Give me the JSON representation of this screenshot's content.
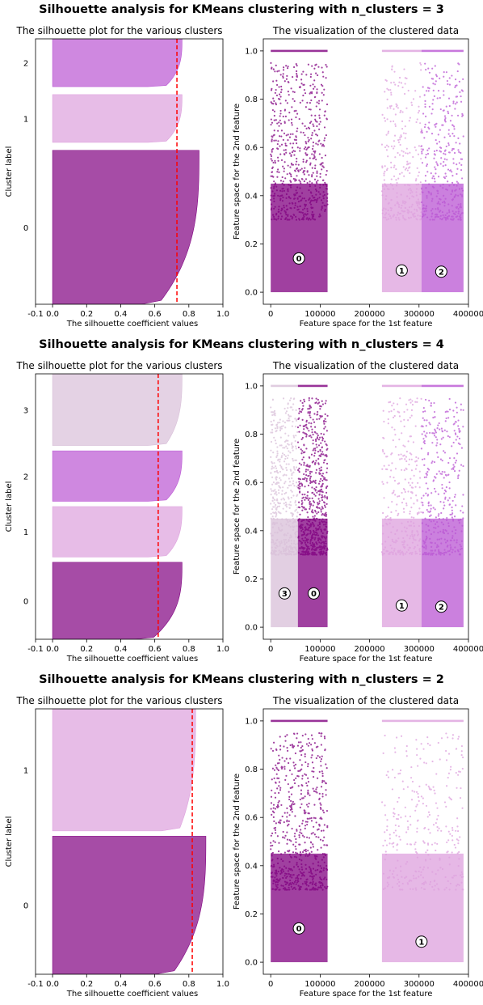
{
  "colors": {
    "cluster0": "#800080",
    "cluster1": "#dda0dd",
    "cluster2": "#ba55d3",
    "cluster3": "#d8bfd8",
    "average_line": "#ff0000"
  },
  "chart_data": [
    {
      "suptitle": "Silhouette analysis for KMeans clustering with n_clusters = 3",
      "silhouette": {
        "type": "area",
        "title": "The silhouette plot for the various clusters",
        "xlabel": "The silhouette coefficient values",
        "ylabel": "Cluster label",
        "xlim": [
          -0.1,
          1.0
        ],
        "xticks": [
          "-0.1",
          "0.0",
          "0.2",
          "0.4",
          "0.6",
          "0.8",
          "1.0"
        ],
        "ylim": [
          0,
          100
        ],
        "average_score": 0.73,
        "clusters": [
          {
            "label": "0",
            "color_key": "cluster0",
            "y_start": 0,
            "y_end": 58,
            "max": 0.86,
            "min": 0.62
          },
          {
            "label": "1",
            "color_key": "cluster1",
            "y_start": 61,
            "y_end": 79,
            "max": 0.76,
            "min": 0.66
          },
          {
            "label": "2",
            "color_key": "cluster2",
            "y_start": 82,
            "y_end": 100,
            "max": 0.76,
            "min": 0.66
          }
        ]
      },
      "scatter": {
        "type": "scatter",
        "title": "The visualization of the clustered data",
        "xlabel": "Feature space for the 1st feature",
        "ylabel": "Feature space for the 2nd feature",
        "xlim": [
          -15000,
          400000
        ],
        "ylim": [
          -0.05,
          1.05
        ],
        "xticks": [
          0,
          100000,
          200000,
          300000,
          400000
        ],
        "yticks": [
          0.0,
          0.2,
          0.4,
          0.6,
          0.8,
          1.0
        ],
        "clusters": [
          {
            "label": "0",
            "color_key": "cluster0",
            "x_range": [
              0,
              115000
            ],
            "density": 1.0,
            "center": [
              57000,
              0.14
            ]
          },
          {
            "label": "1",
            "color_key": "cluster1",
            "x_range": [
              225000,
              305000
            ],
            "density": 0.45,
            "center": [
              265000,
              0.09
            ]
          },
          {
            "label": "2",
            "color_key": "cluster2",
            "x_range": [
              305000,
              390000
            ],
            "density": 0.55,
            "center": [
              345000,
              0.085
            ]
          }
        ]
      }
    },
    {
      "suptitle": "Silhouette analysis for KMeans clustering with n_clusters = 4",
      "silhouette": {
        "type": "area",
        "title": "The silhouette plot for the various clusters",
        "xlabel": "The silhouette coefficient values",
        "ylabel": "Cluster label",
        "xlim": [
          -0.1,
          1.0
        ],
        "xticks": [
          "-0.1",
          "0.0",
          "0.2",
          "0.4",
          "0.6",
          "0.8",
          "1.0"
        ],
        "ylim": [
          0,
          100
        ],
        "average_score": 0.62,
        "clusters": [
          {
            "label": "0",
            "color_key": "cluster0",
            "y_start": 0,
            "y_end": 29,
            "max": 0.76,
            "min": 0.58
          },
          {
            "label": "1",
            "color_key": "cluster1",
            "y_start": 31,
            "y_end": 50,
            "max": 0.76,
            "min": 0.66
          },
          {
            "label": "2",
            "color_key": "cluster2",
            "y_start": 52,
            "y_end": 71,
            "max": 0.76,
            "min": 0.66
          },
          {
            "label": "3",
            "color_key": "cluster3",
            "y_start": 73,
            "y_end": 100,
            "max": 0.76,
            "min": 0.66
          }
        ]
      },
      "scatter": {
        "type": "scatter",
        "title": "The visualization of the clustered data",
        "xlabel": "Feature space for the 1st feature",
        "ylabel": "Feature space for the 2nd feature",
        "xlim": [
          -15000,
          400000
        ],
        "ylim": [
          -0.05,
          1.05
        ],
        "xticks": [
          0,
          100000,
          200000,
          300000,
          400000
        ],
        "yticks": [
          0.0,
          0.2,
          0.4,
          0.6,
          0.8,
          1.0
        ],
        "clusters": [
          {
            "label": "3",
            "color_key": "cluster3",
            "x_range": [
              0,
              55000
            ],
            "density": 0.7,
            "center": [
              28000,
              0.14
            ]
          },
          {
            "label": "0",
            "color_key": "cluster0",
            "x_range": [
              55000,
              115000
            ],
            "density": 1.0,
            "center": [
              87000,
              0.14
            ]
          },
          {
            "label": "1",
            "color_key": "cluster1",
            "x_range": [
              225000,
              305000
            ],
            "density": 0.45,
            "center": [
              265000,
              0.09
            ]
          },
          {
            "label": "2",
            "color_key": "cluster2",
            "x_range": [
              305000,
              390000
            ],
            "density": 0.55,
            "center": [
              345000,
              0.085
            ]
          }
        ]
      }
    },
    {
      "suptitle": "Silhouette analysis for KMeans clustering with n_clusters = 2",
      "silhouette": {
        "type": "area",
        "title": "The silhouette plot for the various clusters",
        "xlabel": "The silhouette coefficient values",
        "ylabel": "Cluster label",
        "xlim": [
          -0.1,
          1.0
        ],
        "xticks": [
          "-0.1",
          "0.0",
          "0.2",
          "0.4",
          "0.6",
          "0.8",
          "1.0"
        ],
        "ylim": [
          0,
          100
        ],
        "average_score": 0.82,
        "clusters": [
          {
            "label": "0",
            "color_key": "cluster0",
            "y_start": 0,
            "y_end": 52,
            "max": 0.9,
            "min": 0.7
          },
          {
            "label": "1",
            "color_key": "cluster1",
            "y_start": 54,
            "y_end": 100,
            "max": 0.84,
            "min": 0.74
          }
        ]
      },
      "scatter": {
        "type": "scatter",
        "title": "The visualization of the clustered data",
        "xlabel": "Feature space for the 1st feature",
        "ylabel": "Feature space for the 2nd feature",
        "xlim": [
          -15000,
          400000
        ],
        "ylim": [
          -0.05,
          1.05
        ],
        "xticks": [
          0,
          100000,
          200000,
          300000,
          400000
        ],
        "yticks": [
          0.0,
          0.2,
          0.4,
          0.6,
          0.8,
          1.0
        ],
        "clusters": [
          {
            "label": "0",
            "color_key": "cluster0",
            "x_range": [
              0,
              115000
            ],
            "density": 1.0,
            "center": [
              57000,
              0.14
            ]
          },
          {
            "label": "1",
            "color_key": "cluster1",
            "x_range": [
              225000,
              390000
            ],
            "density": 0.5,
            "center": [
              305000,
              0.085
            ]
          }
        ]
      }
    }
  ]
}
